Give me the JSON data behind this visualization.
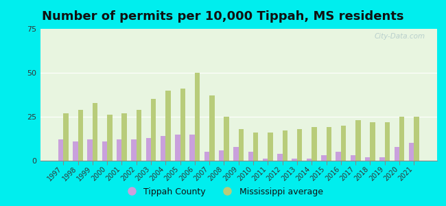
{
  "title": "Number of permits per 10,000 Tippah, MS residents",
  "years": [
    1997,
    1998,
    1999,
    2000,
    2001,
    2002,
    2003,
    2004,
    2005,
    2006,
    2007,
    2008,
    2009,
    2010,
    2011,
    2012,
    2013,
    2014,
    2015,
    2016,
    2017,
    2018,
    2019,
    2020,
    2021
  ],
  "tippah": [
    12,
    11,
    12,
    11,
    12,
    12,
    13,
    14,
    15,
    15,
    5,
    6,
    8,
    5,
    1,
    4,
    1,
    1,
    3,
    5,
    3,
    2,
    2,
    8,
    10
  ],
  "ms_avg": [
    27,
    29,
    33,
    26,
    27,
    29,
    35,
    40,
    41,
    50,
    37,
    25,
    18,
    16,
    16,
    17,
    18,
    19,
    19,
    20,
    23,
    22,
    22,
    25,
    25
  ],
  "tippah_color": "#c9a0dc",
  "ms_avg_color": "#b8cc7a",
  "background_top": "#d0ede0",
  "background_bottom": "#e8f5e0",
  "outer_background": "#00eeee",
  "ylim": [
    0,
    75
  ],
  "yticks": [
    0,
    25,
    50,
    75
  ],
  "bar_width": 0.35,
  "legend_labels": [
    "Tippah County",
    "Mississippi average"
  ],
  "title_fontsize": 13.0
}
